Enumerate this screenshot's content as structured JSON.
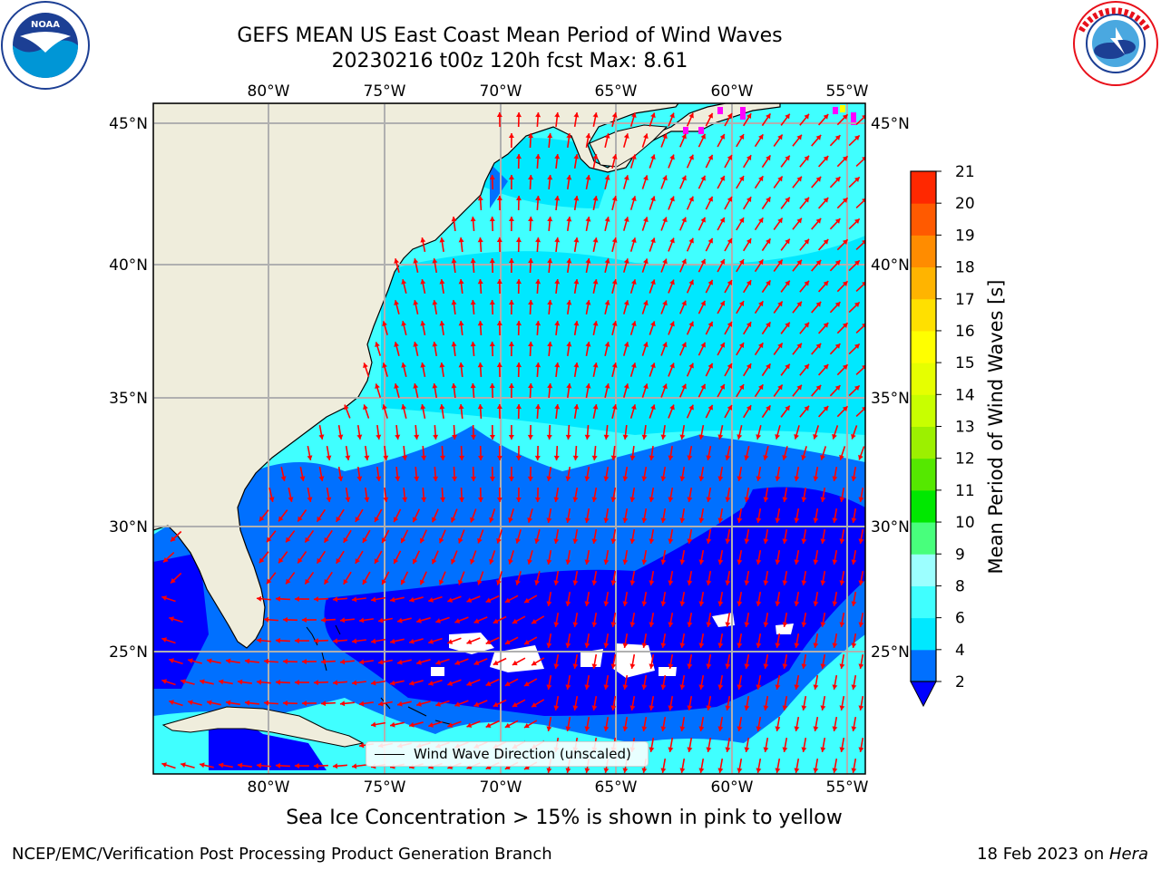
{
  "header": {
    "title_line1": "GEFS MEAN US East Coast Mean Period of Wind Waves",
    "title_line2": "20230216 t00z 120h fcst   Max: 8.61"
  },
  "logos": {
    "left": "noaa-logo",
    "right": "nws-logo"
  },
  "map": {
    "region": "US East Coast",
    "lon_ticks": [
      "80°W",
      "75°W",
      "70°W",
      "65°W",
      "60°W",
      "55°W"
    ],
    "lat_ticks": [
      "45°N",
      "40°N",
      "35°N",
      "30°N",
      "25°N"
    ],
    "land_color": "#efeddc",
    "grid_color": "#b0b0b0",
    "arrow_color": "#ff0000",
    "legend_label": "Wind Wave Direction (unscaled)"
  },
  "colorbar": {
    "label": "Mean Period of Wind Waves [s]",
    "ticks": [
      "2",
      "4",
      "6",
      "8",
      "9",
      "10",
      "11",
      "12",
      "13",
      "14",
      "15",
      "16",
      "17",
      "18",
      "19",
      "20",
      "21"
    ],
    "colors": [
      "#0070ff",
      "#00e8ff",
      "#40ffff",
      "#9cffff",
      "#48ff7c",
      "#00e800",
      "#55e800",
      "#9cf000",
      "#c8ff00",
      "#e6ff00",
      "#ffff00",
      "#ffe000",
      "#ffb400",
      "#ff8c00",
      "#ff5a00",
      "#ff2800",
      "#ff0000"
    ],
    "under_color": "#0000ff"
  },
  "footer": {
    "ice_note": "Sea Ice Concentration > 15% is shown in pink to yellow",
    "left": "NCEP/EMC/Verification Post Processing Product Generation Branch",
    "right_prefix": "18 Feb 2023 on ",
    "right_machine": "Hera"
  }
}
